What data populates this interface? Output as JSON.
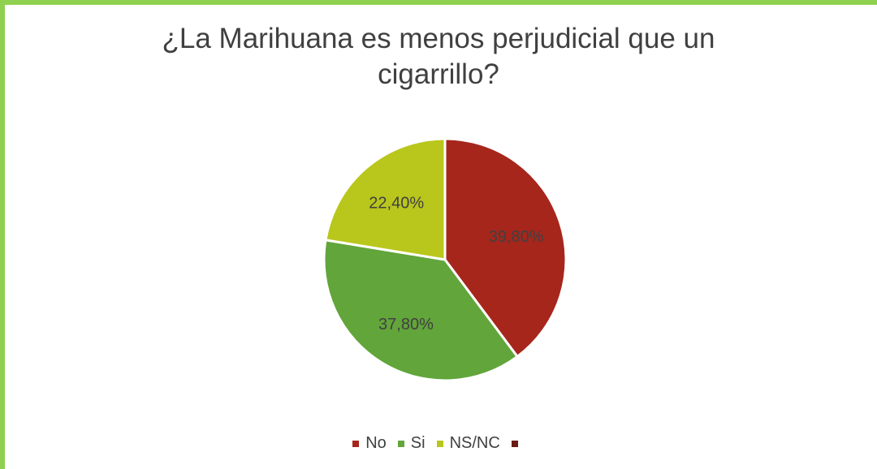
{
  "chart_data": {
    "type": "pie",
    "title_lines": [
      "¿La Marihuana es menos perjudicial que un",
      "cigarrillo?"
    ],
    "slices": [
      {
        "label": "No",
        "value": 39.8,
        "value_label": "39,80%",
        "color": "#a6261c"
      },
      {
        "label": "Si",
        "value": 37.8,
        "value_label": "37,80%",
        "color": "#62a53b"
      },
      {
        "label": "NS/NC",
        "value": 22.4,
        "value_label": "22,40%",
        "color": "#b9c61c"
      }
    ],
    "legend": [
      {
        "label": "No",
        "color": "#a6261c"
      },
      {
        "label": "Si",
        "color": "#62a53b"
      },
      {
        "label": "NS/NC",
        "color": "#b9c61c"
      },
      {
        "label": "",
        "color": "#6b1a14"
      }
    ],
    "legend_position": "bottom",
    "label_color": "#404040"
  }
}
